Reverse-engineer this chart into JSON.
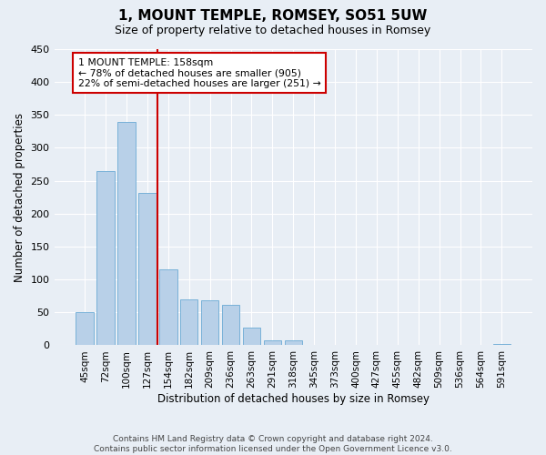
{
  "title": "1, MOUNT TEMPLE, ROMSEY, SO51 5UW",
  "subtitle": "Size of property relative to detached houses in Romsey",
  "xlabel": "Distribution of detached houses by size in Romsey",
  "ylabel": "Number of detached properties",
  "footer_line1": "Contains HM Land Registry data © Crown copyright and database right 2024.",
  "footer_line2": "Contains public sector information licensed under the Open Government Licence v3.0.",
  "bar_color": "#b8d0e8",
  "bar_edge_color": "#6aaad4",
  "background_color": "#e8eef5",
  "grid_color": "#ffffff",
  "vline_color": "#cc0000",
  "annotation_box_color": "#cc0000",
  "annotation_text_line1": "1 MOUNT TEMPLE: 158sqm",
  "annotation_text_line2": "← 78% of detached houses are smaller (905)",
  "annotation_text_line3": "22% of semi-detached houses are larger (251) →",
  "categories": [
    "45sqm",
    "72sqm",
    "100sqm",
    "127sqm",
    "154sqm",
    "182sqm",
    "209sqm",
    "236sqm",
    "263sqm",
    "291sqm",
    "318sqm",
    "345sqm",
    "373sqm",
    "400sqm",
    "427sqm",
    "455sqm",
    "482sqm",
    "509sqm",
    "536sqm",
    "564sqm",
    "591sqm"
  ],
  "values": [
    50,
    265,
    340,
    232,
    115,
    70,
    68,
    62,
    27,
    7,
    7,
    1,
    0,
    0,
    1,
    0,
    0,
    0,
    0,
    0,
    2
  ],
  "ylim": [
    0,
    450
  ],
  "yticks": [
    0,
    50,
    100,
    150,
    200,
    250,
    300,
    350,
    400,
    450
  ],
  "vline_x": 3.5,
  "figsize": [
    6.0,
    5.0
  ],
  "dpi": 100
}
